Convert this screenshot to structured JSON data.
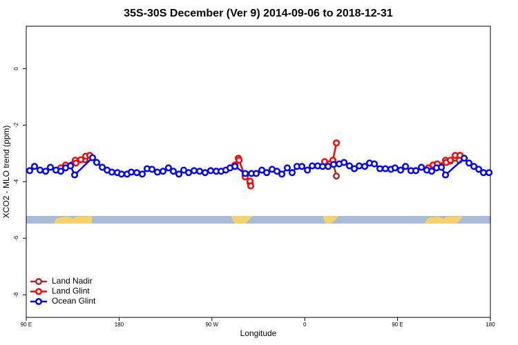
{
  "chart_data": {
    "type": "line",
    "title": "35S-30S December (Ver 9)   2014-09-06 to 2018-12-31",
    "x_label": "Longitude",
    "y_label": "XCO2 - MLO trend (ppm)",
    "xlim": [
      90,
      540
    ],
    "ylim": [
      -8.8,
      1.5
    ],
    "xticks": [
      {
        "value": 90,
        "label": "90 E"
      },
      180,
      {
        "value": 270,
        "label": "90 W"
      },
      {
        "value": 360,
        "label": "0"
      },
      {
        "value": 450,
        "label": "90 E"
      },
      {
        "value": 540,
        "label": "180"
      }
    ],
    "yticks": [
      0,
      -2,
      -4,
      -6,
      -8
    ],
    "legend": "bottom-left",
    "series": [
      {
        "name": "Land Nadir",
        "color": "#a52a2a",
        "x": [
          118.8,
          137.5,
          146.9,
          250,
          302.3,
          307.0,
          350,
          387.3,
          390.7,
          450,
          496.5,
          501.2,
          509.9
        ],
        "values": [
          -3.59,
          -3.24,
          -3.22,
          null,
          -3.76,
          -4.05,
          null,
          -3.29,
          -3.8,
          null,
          -3.24,
          -3.27,
          -3.24
        ]
      },
      {
        "name": "Land Glint",
        "color": "#ff0000",
        "x": [
          123.5,
          128.2,
          138.2,
          142.9,
          147.6,
          151.6,
          200,
          292.3,
          295.6,
          296.3,
          302.3,
          307.0,
          307.7,
          350,
          379.3,
          384.0,
          387.3,
          390.7,
          450,
          479.8,
          484.5,
          488.5,
          497.2,
          501.2,
          505.9,
          510.6
        ],
        "values": [
          -3.51,
          -3.41,
          -3.34,
          -3.22,
          -3.1,
          -3.07,
          null,
          -3.41,
          -3.17,
          -3.24,
          -3.83,
          -3.98,
          -4.15,
          null,
          -3.29,
          -3.37,
          -3.24,
          -2.63,
          null,
          -3.51,
          -3.41,
          -3.37,
          -3.32,
          -3.24,
          -3.07,
          -3.07
        ]
      },
      {
        "name": "Ocean Glint",
        "color": "#0000ff",
        "x": [
          93.3,
          98.0,
          103.4,
          108.8,
          113.4,
          118.8,
          123.5,
          128.2,
          132.9,
          136.9,
          154.3,
          158.3,
          163.7,
          168.4,
          173.0,
          178.4,
          182.4,
          187.8,
          191.8,
          197.2,
          202.5,
          207.2,
          211.9,
          217.2,
          222.6,
          227.9,
          232.6,
          238.0,
          242.7,
          247.4,
          252.7,
          258.1,
          263.4,
          268.8,
          274.2,
          278.9,
          283.5,
          287.6,
          292.3,
          302.3,
          308.3,
          313.0,
          318.4,
          323.1,
          328.4,
          333.1,
          337.8,
          343.1,
          347.8,
          352.5,
          357.2,
          362.6,
          367.3,
          372.6,
          377.3,
          382.7,
          388.0,
          393.4,
          398.1,
          403.4,
          408.1,
          412.8,
          418.2,
          422.8,
          427.5,
          432.9,
          438.2,
          443.6,
          447.6,
          453.0,
          457.7,
          463.0,
          467.7,
          473.1,
          478.4,
          483.1,
          487.8,
          492.5,
          496.5,
          514.6,
          519.3,
          524.0,
          528.7,
          533.3,
          538.7
        ],
        "values": [
          -3.61,
          -3.46,
          -3.59,
          -3.63,
          -3.49,
          -3.59,
          -3.63,
          -3.51,
          -3.44,
          -3.76,
          -3.15,
          -3.32,
          -3.49,
          -3.59,
          -3.66,
          -3.68,
          -3.73,
          -3.73,
          -3.66,
          -3.68,
          -3.73,
          -3.54,
          -3.56,
          -3.66,
          -3.63,
          -3.51,
          -3.63,
          -3.73,
          -3.59,
          -3.68,
          -3.61,
          -3.63,
          -3.68,
          -3.61,
          -3.63,
          -3.63,
          -3.59,
          -3.51,
          -3.46,
          -3.71,
          -3.71,
          -3.71,
          -3.59,
          -3.68,
          -3.56,
          -3.63,
          -3.73,
          -3.51,
          -3.68,
          -3.46,
          -3.46,
          -3.59,
          -3.44,
          -3.44,
          -3.46,
          -3.46,
          -3.39,
          -3.37,
          -3.32,
          -3.44,
          -3.54,
          -3.44,
          -3.46,
          -3.34,
          -3.37,
          -3.54,
          -3.54,
          -3.56,
          -3.51,
          -3.59,
          -3.46,
          -3.61,
          -3.61,
          -3.49,
          -3.59,
          -3.63,
          -3.51,
          -3.49,
          -3.76,
          -3.17,
          -3.34,
          -3.46,
          -3.56,
          -3.68,
          -3.68
        ]
      }
    ]
  }
}
